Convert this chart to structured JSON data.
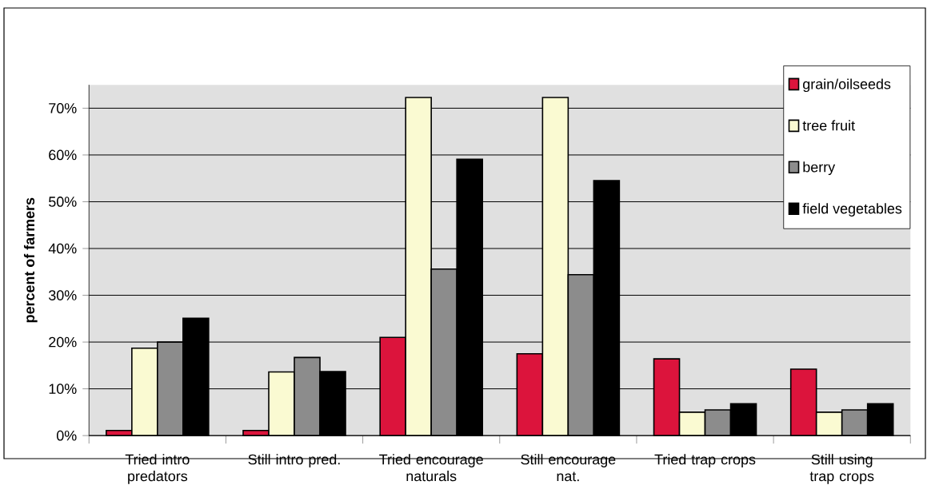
{
  "chart_data": {
    "type": "bar",
    "ylabel": "percent of farmers",
    "categories": [
      "Tried intro predators",
      "Still intro pred.",
      "Tried encourage naturals",
      "Still encourage nat.",
      "Tried trap crops",
      "Still using trap crops"
    ],
    "series": [
      {
        "name": "grain/oilseeds",
        "color": "#dc143c",
        "values": [
          1.1,
          1.1,
          21.0,
          17.5,
          16.4,
          14.2
        ]
      },
      {
        "name": "tree fruit",
        "color": "#fafad2",
        "values": [
          18.7,
          13.6,
          72.3,
          72.3,
          5.0,
          5.0
        ]
      },
      {
        "name": "berry",
        "color": "#8c8c8c",
        "values": [
          20.0,
          16.7,
          35.6,
          34.4,
          5.5,
          5.5
        ]
      },
      {
        "name": "field vegetables",
        "color": "#000000",
        "values": [
          25.1,
          13.7,
          59.1,
          54.5,
          6.8,
          6.8
        ]
      }
    ],
    "ylim": [
      0,
      75
    ],
    "yticks": [
      {
        "value": 0,
        "label": "0%"
      },
      {
        "value": 10,
        "label": "10%"
      },
      {
        "value": 20,
        "label": "20%"
      },
      {
        "value": 30,
        "label": "30%"
      },
      {
        "value": 40,
        "label": "40%"
      },
      {
        "value": 50,
        "label": "50%"
      },
      {
        "value": 60,
        "label": "60%"
      },
      {
        "value": 70,
        "label": "70%"
      }
    ],
    "grid": "y",
    "legend": "top right"
  }
}
